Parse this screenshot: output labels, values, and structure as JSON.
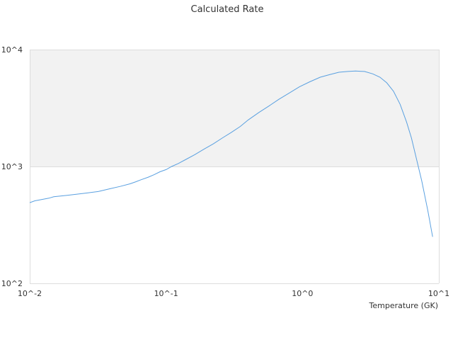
{
  "chart_data": {
    "type": "line",
    "title": "Calculated Rate",
    "xlabel": "Temperature (GK)",
    "ylabel": "",
    "x_scale": "log",
    "y_scale": "log",
    "xlim": [
      0.01,
      10
    ],
    "ylim": [
      100,
      10000
    ],
    "x_ticks": [
      {
        "value": 0.01,
        "label": "10^-2"
      },
      {
        "value": 0.1,
        "label": "10^-1"
      },
      {
        "value": 1,
        "label": "10^0"
      },
      {
        "value": 10,
        "label": "10^1"
      }
    ],
    "y_ticks": [
      {
        "value": 100,
        "label": "10^2"
      },
      {
        "value": 1000,
        "label": "10^3"
      },
      {
        "value": 10000,
        "label": "10^4"
      }
    ],
    "grid": true,
    "legend": "none",
    "band_color": "#f2f2f2",
    "grid_color": "#dddddd",
    "line_color": "#5aa0e0",
    "series": [
      {
        "x": [
          0.01,
          0.0109,
          0.0121,
          0.0138,
          0.015,
          0.0186,
          0.0225,
          0.0268,
          0.0318,
          0.0389,
          0.046,
          0.0544,
          0.06,
          0.0646,
          0.074,
          0.0817,
          0.0902,
          0.1,
          0.11,
          0.123,
          0.14,
          0.162,
          0.19,
          0.222,
          0.26,
          0.3,
          0.35,
          0.4,
          0.48,
          0.57,
          0.67,
          0.8,
          0.95,
          1.13,
          1.35,
          1.58,
          1.85,
          2.15,
          2.45,
          2.85,
          3.28,
          3.7,
          4.15,
          4.65,
          5.2,
          5.8,
          6.3,
          6.75,
          7.5,
          8.3,
          9.0
        ],
        "y": [
          490,
          508,
          520,
          535,
          550,
          565,
          580,
          595,
          610,
          645,
          675,
          710,
          740,
          765,
          810,
          850,
          900,
          940,
          1000,
          1060,
          1150,
          1260,
          1410,
          1560,
          1760,
          1950,
          2200,
          2500,
          2900,
          3300,
          3750,
          4250,
          4800,
          5300,
          5800,
          6100,
          6400,
          6500,
          6550,
          6500,
          6200,
          5800,
          5200,
          4400,
          3400,
          2400,
          1750,
          1250,
          750,
          420,
          250
        ]
      }
    ]
  }
}
